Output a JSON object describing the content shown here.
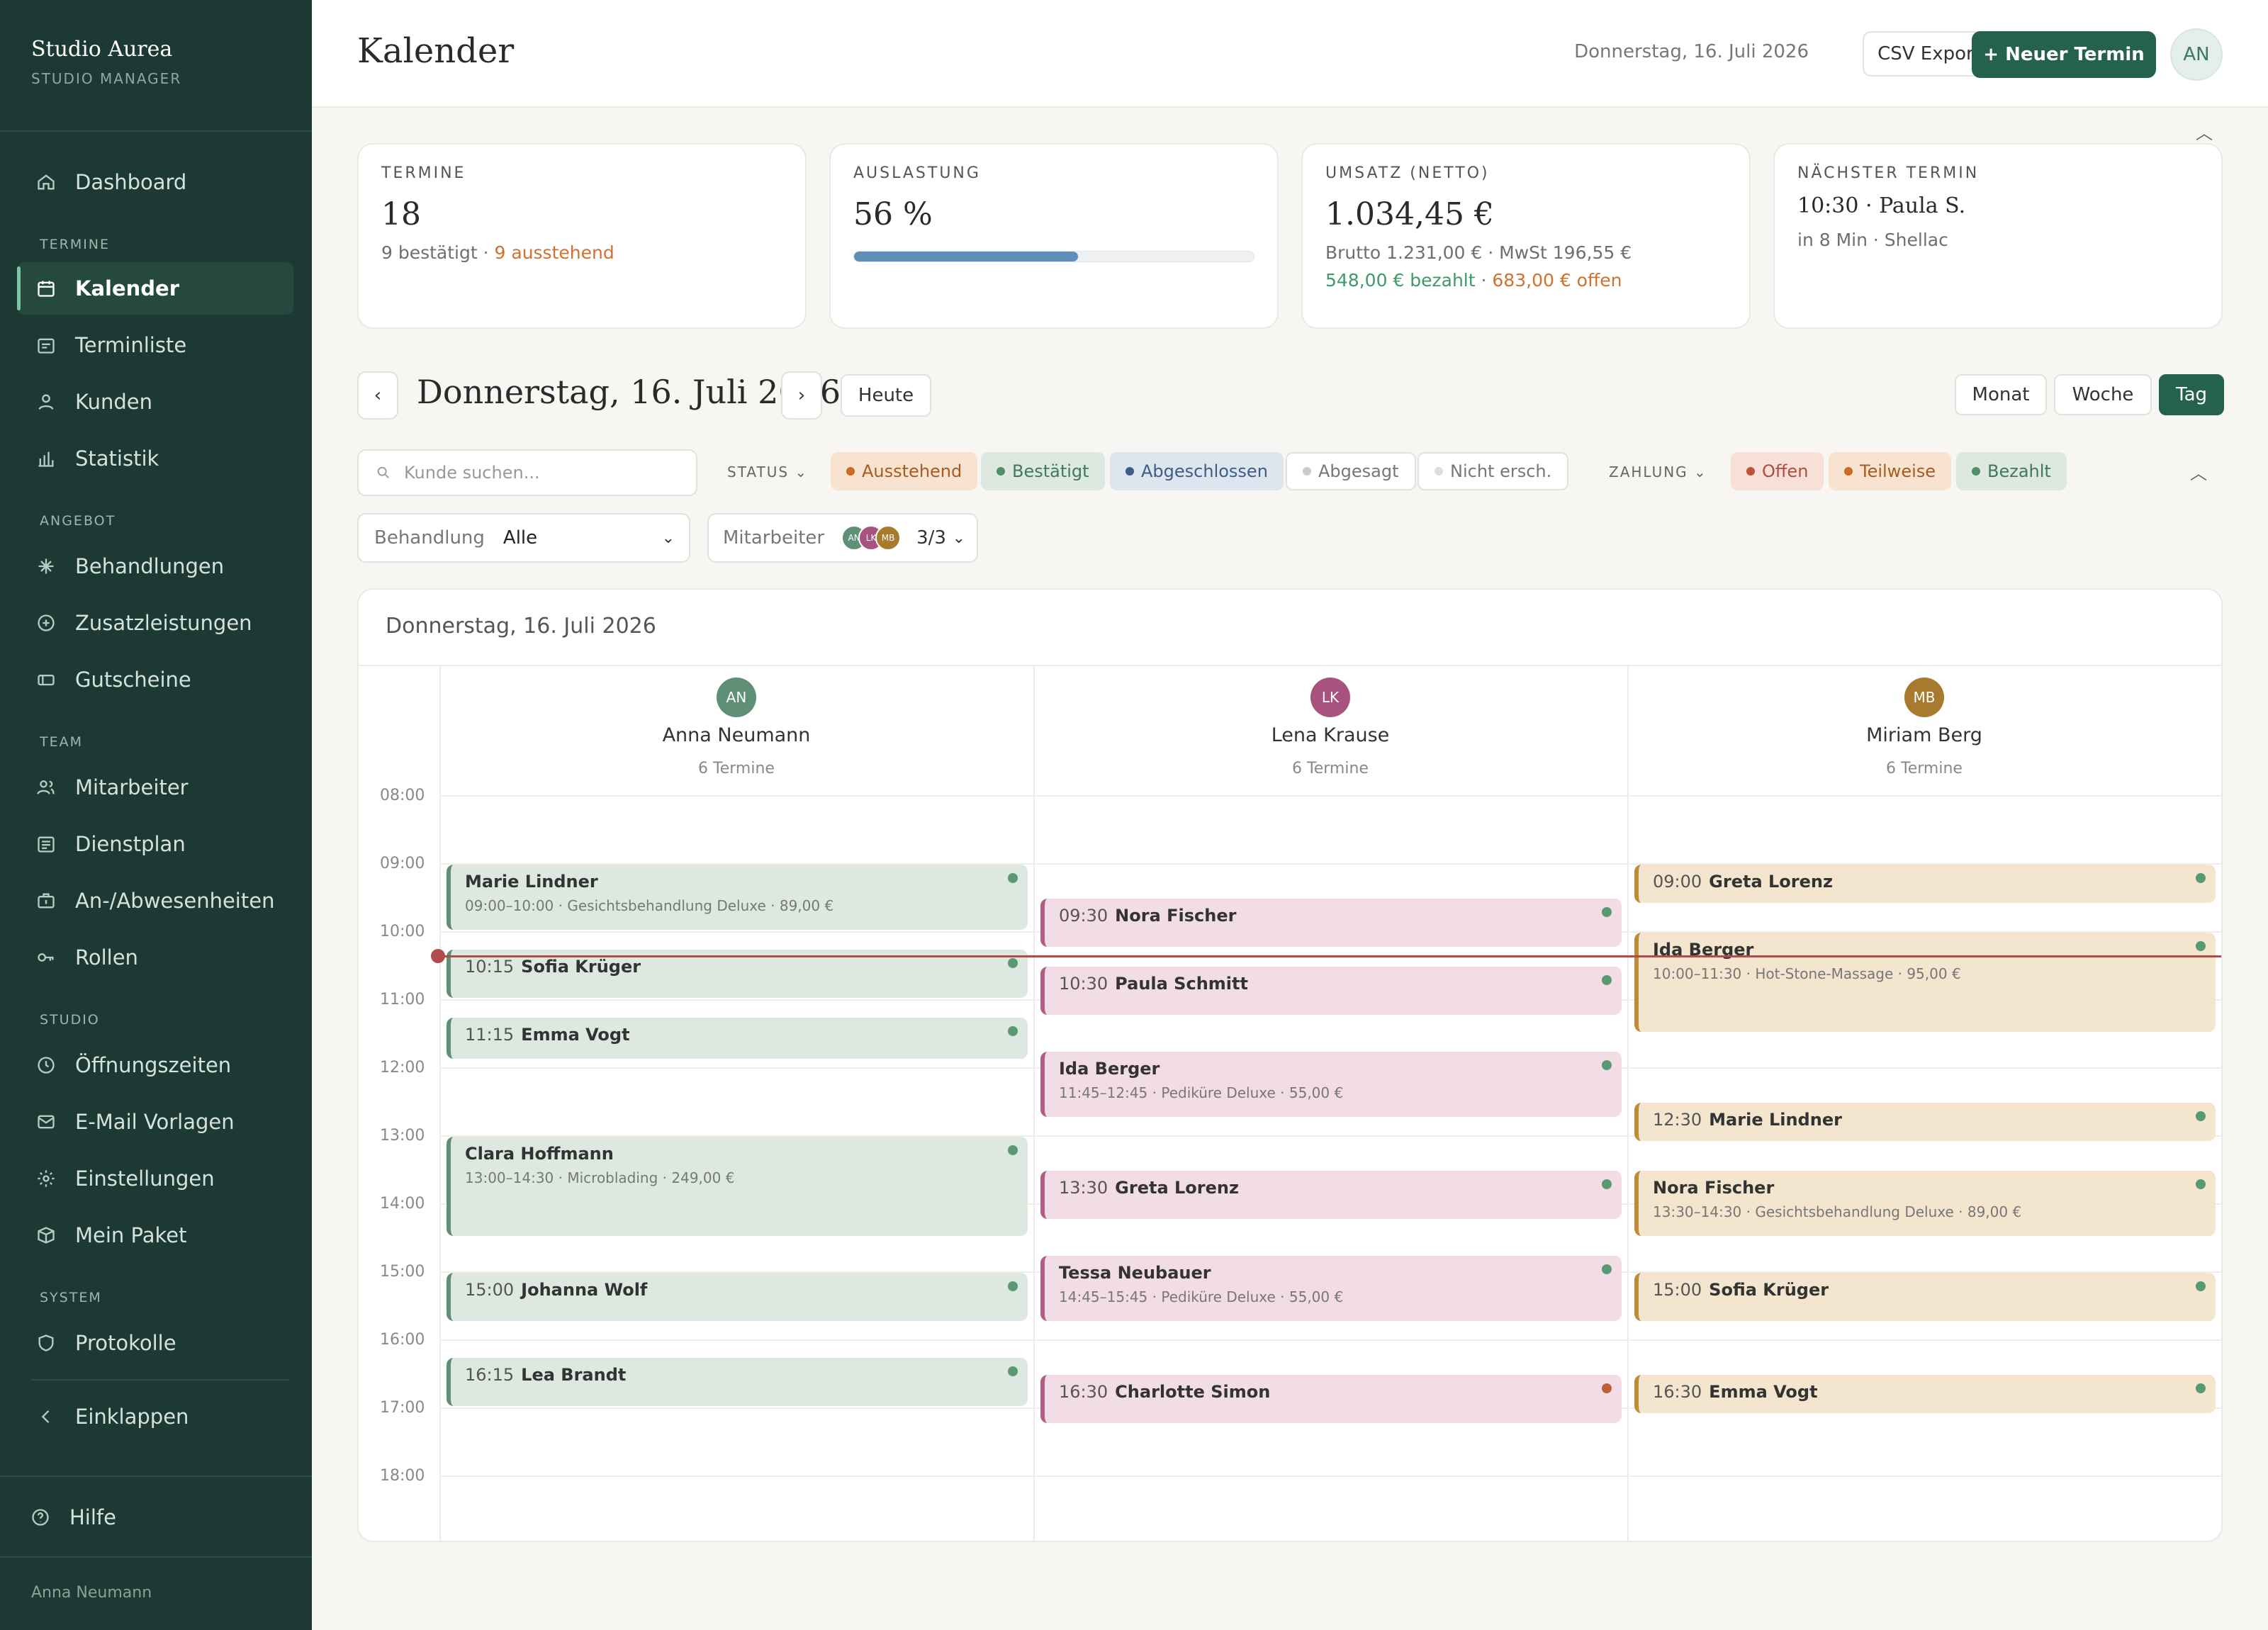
{
  "sidebar": {
    "brand_name": "Studio Aurea",
    "brand_sub": "STUDIO MANAGER",
    "items": {
      "dashboard": "Dashboard",
      "kalender": "Kalender",
      "terminliste": "Terminliste",
      "kunden": "Kunden",
      "statistik": "Statistik",
      "behandlungen": "Behandlungen",
      "zusatz": "Zusatzleistungen",
      "gutscheine": "Gutscheine",
      "mitarbeiter": "Mitarbeiter",
      "dienstplan": "Dienstplan",
      "abwesen": "An-/Abwesenheiten",
      "rollen": "Rollen",
      "oeffnung": "Öffnungszeiten",
      "email": "E-Mail Vorlagen",
      "einstellungen": "Einstellungen",
      "paket": "Mein Paket",
      "protokolle": "Protokolle",
      "einklappen": "Einklappen",
      "hilfe": "Hilfe"
    },
    "sections": {
      "termine": "TERMINE",
      "angebot": "ANGEBOT",
      "team": "TEAM",
      "studio": "STUDIO",
      "system": "SYSTEM"
    },
    "footer_user": "Anna Neumann"
  },
  "header": {
    "title": "Kalender",
    "date": "Donnerstag, 16. Juli 2026",
    "csv": "CSV Export",
    "new_appt": "+ Neuer Termin",
    "avatar": "AN"
  },
  "stats": {
    "termine": {
      "label": "TERMINE",
      "value": "18",
      "confirmed": "9 bestätigt",
      "sep": " · ",
      "pending": "9 ausstehend"
    },
    "auslastung": {
      "label": "AUSLASTUNG",
      "value": "56 %",
      "fraction": 0.56
    },
    "umsatz": {
      "label": "UMSATZ (NETTO)",
      "value": "1.034,45 €",
      "sub": "Brutto 1.231,00 € · MwSt 196,55 €",
      "paid": "548,00 € bezahlt",
      "sep": " · ",
      "open": "683,00 € offen"
    },
    "naechster": {
      "label": "NÄCHSTER TERMIN",
      "value": "10:30 · Paula S.",
      "sub": "in 8 Min · Shellac"
    }
  },
  "nav": {
    "date": "Donnerstag, 16. Juli 2026",
    "prev": "‹",
    "next": "›",
    "today": "Heute",
    "views": {
      "month": "Monat",
      "week": "Woche",
      "day": "Tag"
    }
  },
  "filters": {
    "search_placeholder": "Kunde suchen...",
    "status_label": "STATUS",
    "status": {
      "pending": "Ausstehend",
      "confirmed": "Bestätigt",
      "done": "Abgeschlossen",
      "cancelled": "Abgesagt",
      "noshow": "Nicht ersch."
    },
    "payment_label": "ZAHLUNG",
    "payment": {
      "open": "Offen",
      "partial": "Teilweise",
      "paid": "Bezahlt"
    },
    "treatment_label": "Behandlung",
    "treatment_value": "Alle",
    "staff_label": "Mitarbeiter",
    "staff_count": "3/3",
    "mini_avatars": [
      "AN",
      "LK",
      "MB"
    ]
  },
  "calendar": {
    "title": "Donnerstag, 16. Juli 2026",
    "hours": [
      "08:00",
      "09:00",
      "10:00",
      "11:00",
      "12:00",
      "13:00",
      "14:00",
      "15:00",
      "16:00",
      "17:00",
      "18:00"
    ],
    "staff": [
      {
        "initials": "AN",
        "name": "Anna Neumann",
        "count": "6 Termine",
        "color": "#5f8f76"
      },
      {
        "initials": "LK",
        "name": "Lena Krause",
        "count": "6 Termine",
        "color": "#a8527f"
      },
      {
        "initials": "MB",
        "name": "Miriam Berg",
        "count": "6 Termine",
        "color": "#a87a2e"
      }
    ],
    "appointments": [
      {
        "col": 0,
        "start": 9.0,
        "end": 10.0,
        "time": "",
        "name": "Marie Lindner",
        "detail": "09:00–10:00 · Gesichtsbehandlung Deluxe · 89,00 €",
        "dot": "#5a9a72"
      },
      {
        "col": 0,
        "start": 10.25,
        "end": 11.0,
        "time": "10:15",
        "name": "Sofia Krüger",
        "detail": "",
        "dot": "#5a9a72"
      },
      {
        "col": 0,
        "start": 11.25,
        "end": 11.9,
        "time": "11:15",
        "name": "Emma Vogt",
        "detail": "",
        "dot": "#5a9a72"
      },
      {
        "col": 0,
        "start": 13.0,
        "end": 14.5,
        "time": "",
        "name": "Clara Hoffmann",
        "detail": "13:00–14:30 · Microblading · 249,00 €",
        "dot": "#5a9a72"
      },
      {
        "col": 0,
        "start": 15.0,
        "end": 15.75,
        "time": "15:00",
        "name": "Johanna Wolf",
        "detail": "",
        "dot": "#5a9a72"
      },
      {
        "col": 0,
        "start": 16.25,
        "end": 17.0,
        "time": "16:15",
        "name": "Lea Brandt",
        "detail": "",
        "dot": "#5a9a72"
      },
      {
        "col": 1,
        "start": 9.5,
        "end": 10.25,
        "time": "09:30",
        "name": "Nora Fischer",
        "detail": "",
        "dot": "#5a9a72"
      },
      {
        "col": 1,
        "start": 10.5,
        "end": 11.25,
        "time": "10:30",
        "name": "Paula Schmitt",
        "detail": "",
        "dot": "#5a9a72"
      },
      {
        "col": 1,
        "start": 11.75,
        "end": 12.75,
        "time": "",
        "name": "Ida Berger",
        "detail": "11:45–12:45 · Pediküre Deluxe · 55,00 €",
        "dot": "#5a9a72"
      },
      {
        "col": 1,
        "start": 13.5,
        "end": 14.25,
        "time": "13:30",
        "name": "Greta Lorenz",
        "detail": "",
        "dot": "#5a9a72"
      },
      {
        "col": 1,
        "start": 14.75,
        "end": 15.75,
        "time": "",
        "name": "Tessa Neubauer",
        "detail": "14:45–15:45 · Pediküre Deluxe · 55,00 €",
        "dot": "#5a9a72"
      },
      {
        "col": 1,
        "start": 16.5,
        "end": 17.25,
        "time": "16:30",
        "name": "Charlotte Simon",
        "detail": "",
        "dot": "#c0603a"
      },
      {
        "col": 2,
        "start": 9.0,
        "end": 9.6,
        "time": "09:00",
        "name": "Greta Lorenz",
        "detail": "",
        "dot": "#5a9a72"
      },
      {
        "col": 2,
        "start": 10.0,
        "end": 11.5,
        "time": "",
        "name": "Ida Berger",
        "detail": "10:00–11:30 · Hot-Stone-Massage · 95,00 €",
        "dot": "#5a9a72"
      },
      {
        "col": 2,
        "start": 12.5,
        "end": 13.1,
        "time": "12:30",
        "name": "Marie Lindner",
        "detail": "",
        "dot": "#5a9a72"
      },
      {
        "col": 2,
        "start": 13.5,
        "end": 14.5,
        "time": "",
        "name": "Nora Fischer",
        "detail": "13:30–14:30 · Gesichtsbehandlung Deluxe · 89,00 €",
        "dot": "#5a9a72"
      },
      {
        "col": 2,
        "start": 15.0,
        "end": 15.75,
        "time": "15:00",
        "name": "Sofia Krüger",
        "detail": "",
        "dot": "#5a9a72"
      },
      {
        "col": 2,
        "start": 16.5,
        "end": 17.1,
        "time": "16:30",
        "name": "Emma Vogt",
        "detail": "",
        "dot": "#5a9a72"
      }
    ],
    "now_time": 10.35
  }
}
